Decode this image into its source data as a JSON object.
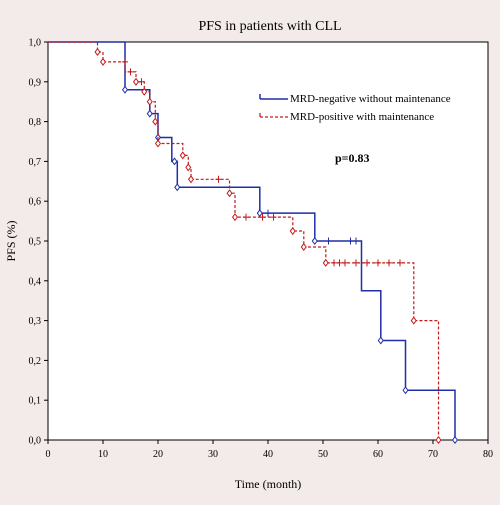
{
  "chart_data": {
    "type": "line",
    "title": "PFS in patients with CLL",
    "xlabel": "Time (month)",
    "ylabel": "PFS (%)",
    "xlim": [
      0,
      80
    ],
    "ylim": [
      0,
      1.0
    ],
    "xticks": [
      0,
      10,
      20,
      30,
      40,
      50,
      60,
      70,
      80
    ],
    "yticks": [
      0,
      0.1,
      0.2,
      0.3,
      0.4,
      0.5,
      0.6,
      0.7,
      0.8,
      0.9,
      1.0
    ],
    "xtick_labels": [
      "0",
      "10",
      "20",
      "30",
      "40",
      "50",
      "60",
      "70",
      "80"
    ],
    "ytick_labels": [
      "0,0",
      "0,1",
      "0,2",
      "0,3",
      "0,4",
      "0,5",
      "0,6",
      "0,7",
      "0,8",
      "0,9",
      "1,0"
    ],
    "grid": false,
    "legend_position": "top-right",
    "annotation": "p=0.83",
    "series": [
      {
        "name": "MRD-negative without maintenance",
        "color": "#1f2fa8",
        "line_style": "solid",
        "x": [
          0,
          14,
          14,
          18.5,
          18.5,
          20,
          20,
          22.5,
          22.5,
          23.5,
          23.5,
          38.5,
          38.5,
          48.5,
          48.5,
          57,
          57,
          60.5,
          60.5,
          65,
          65,
          74,
          74
        ],
        "y": [
          1.0,
          1.0,
          0.88,
          0.88,
          0.82,
          0.82,
          0.76,
          0.76,
          0.7,
          0.7,
          0.635,
          0.635,
          0.57,
          0.57,
          0.5,
          0.5,
          0.375,
          0.375,
          0.25,
          0.25,
          0.125,
          0.125,
          0.0
        ],
        "event_markers_x": [
          14,
          18.5,
          20,
          23,
          23.5,
          38.5,
          48.5,
          60.5,
          65,
          74
        ],
        "event_markers_y": [
          0.88,
          0.82,
          0.76,
          0.7,
          0.635,
          0.57,
          0.5,
          0.25,
          0.125,
          0.0
        ],
        "censor_x": [
          40,
          51,
          55,
          56
        ],
        "censor_y": [
          0.57,
          0.5,
          0.5,
          0.5
        ]
      },
      {
        "name": "MRD-positive with maintenance",
        "color": "#c41a1a",
        "line_style": "dashed",
        "x": [
          0,
          9,
          9,
          10,
          10,
          14,
          14,
          16,
          16,
          17.5,
          17.5,
          18.5,
          18.5,
          19.5,
          19.5,
          20,
          20,
          24.5,
          24.5,
          25.5,
          25.5,
          26,
          26,
          33,
          33,
          34,
          34,
          38.5,
          38.5,
          44.5,
          44.5,
          46.5,
          46.5,
          50.5,
          50.5,
          66.5,
          66.5,
          71,
          71
        ],
        "y": [
          1.0,
          1.0,
          0.975,
          0.975,
          0.95,
          0.95,
          0.925,
          0.925,
          0.9,
          0.9,
          0.875,
          0.875,
          0.85,
          0.85,
          0.8,
          0.8,
          0.745,
          0.745,
          0.715,
          0.715,
          0.685,
          0.685,
          0.655,
          0.655,
          0.62,
          0.62,
          0.56,
          0.56,
          0.56,
          0.56,
          0.525,
          0.525,
          0.485,
          0.485,
          0.445,
          0.445,
          0.3,
          0.3,
          0.0
        ],
        "event_markers_x": [
          9,
          10,
          16,
          17.5,
          18.5,
          19.5,
          20,
          24.5,
          25.5,
          26,
          33,
          34,
          44.5,
          46.5,
          50.5,
          66.5,
          71
        ],
        "event_markers_y": [
          0.975,
          0.95,
          0.9,
          0.875,
          0.85,
          0.8,
          0.745,
          0.715,
          0.685,
          0.655,
          0.62,
          0.56,
          0.525,
          0.485,
          0.445,
          0.3,
          0.0
        ],
        "censor_x": [
          14,
          15,
          17,
          31,
          36,
          39,
          41,
          52,
          53,
          54,
          56,
          58,
          60,
          62,
          64
        ],
        "censor_y": [
          0.95,
          0.925,
          0.9,
          0.655,
          0.56,
          0.56,
          0.56,
          0.445,
          0.445,
          0.445,
          0.445,
          0.445,
          0.445,
          0.445,
          0.445
        ]
      }
    ]
  }
}
